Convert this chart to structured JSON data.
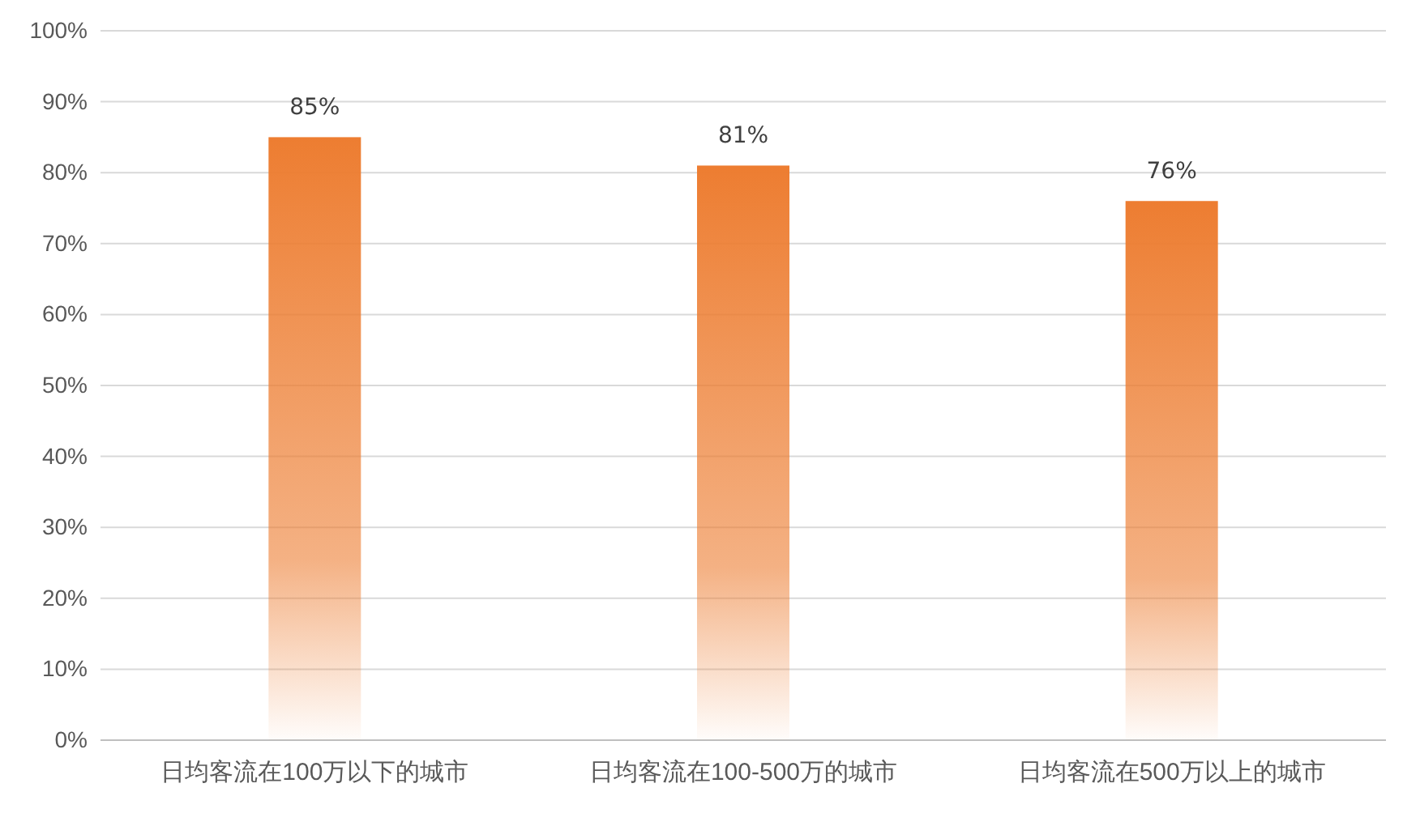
{
  "chart_data": {
    "type": "bar",
    "categories": [
      "日均客流在100万以下的城市",
      "日均客流在100-500万的城市",
      "日均客流在500万以上的城市"
    ],
    "values": [
      85,
      81,
      76
    ],
    "color": "#ed7d31",
    "value_labels": [
      "85%",
      "81%",
      "76%"
    ],
    "ylim": [
      0,
      100
    ],
    "yticks": [
      {
        "value": 0,
        "label": "0%"
      },
      {
        "value": 10,
        "label": "10%"
      },
      {
        "value": 20,
        "label": "20%"
      },
      {
        "value": 30,
        "label": "30%"
      },
      {
        "value": 40,
        "label": "40%"
      },
      {
        "value": 50,
        "label": "50%"
      },
      {
        "value": 60,
        "label": "60%"
      },
      {
        "value": 70,
        "label": "70%"
      },
      {
        "value": 80,
        "label": "80%"
      },
      {
        "value": 90,
        "label": "90%"
      },
      {
        "value": 100,
        "label": "100%"
      }
    ],
    "grid": "y"
  }
}
